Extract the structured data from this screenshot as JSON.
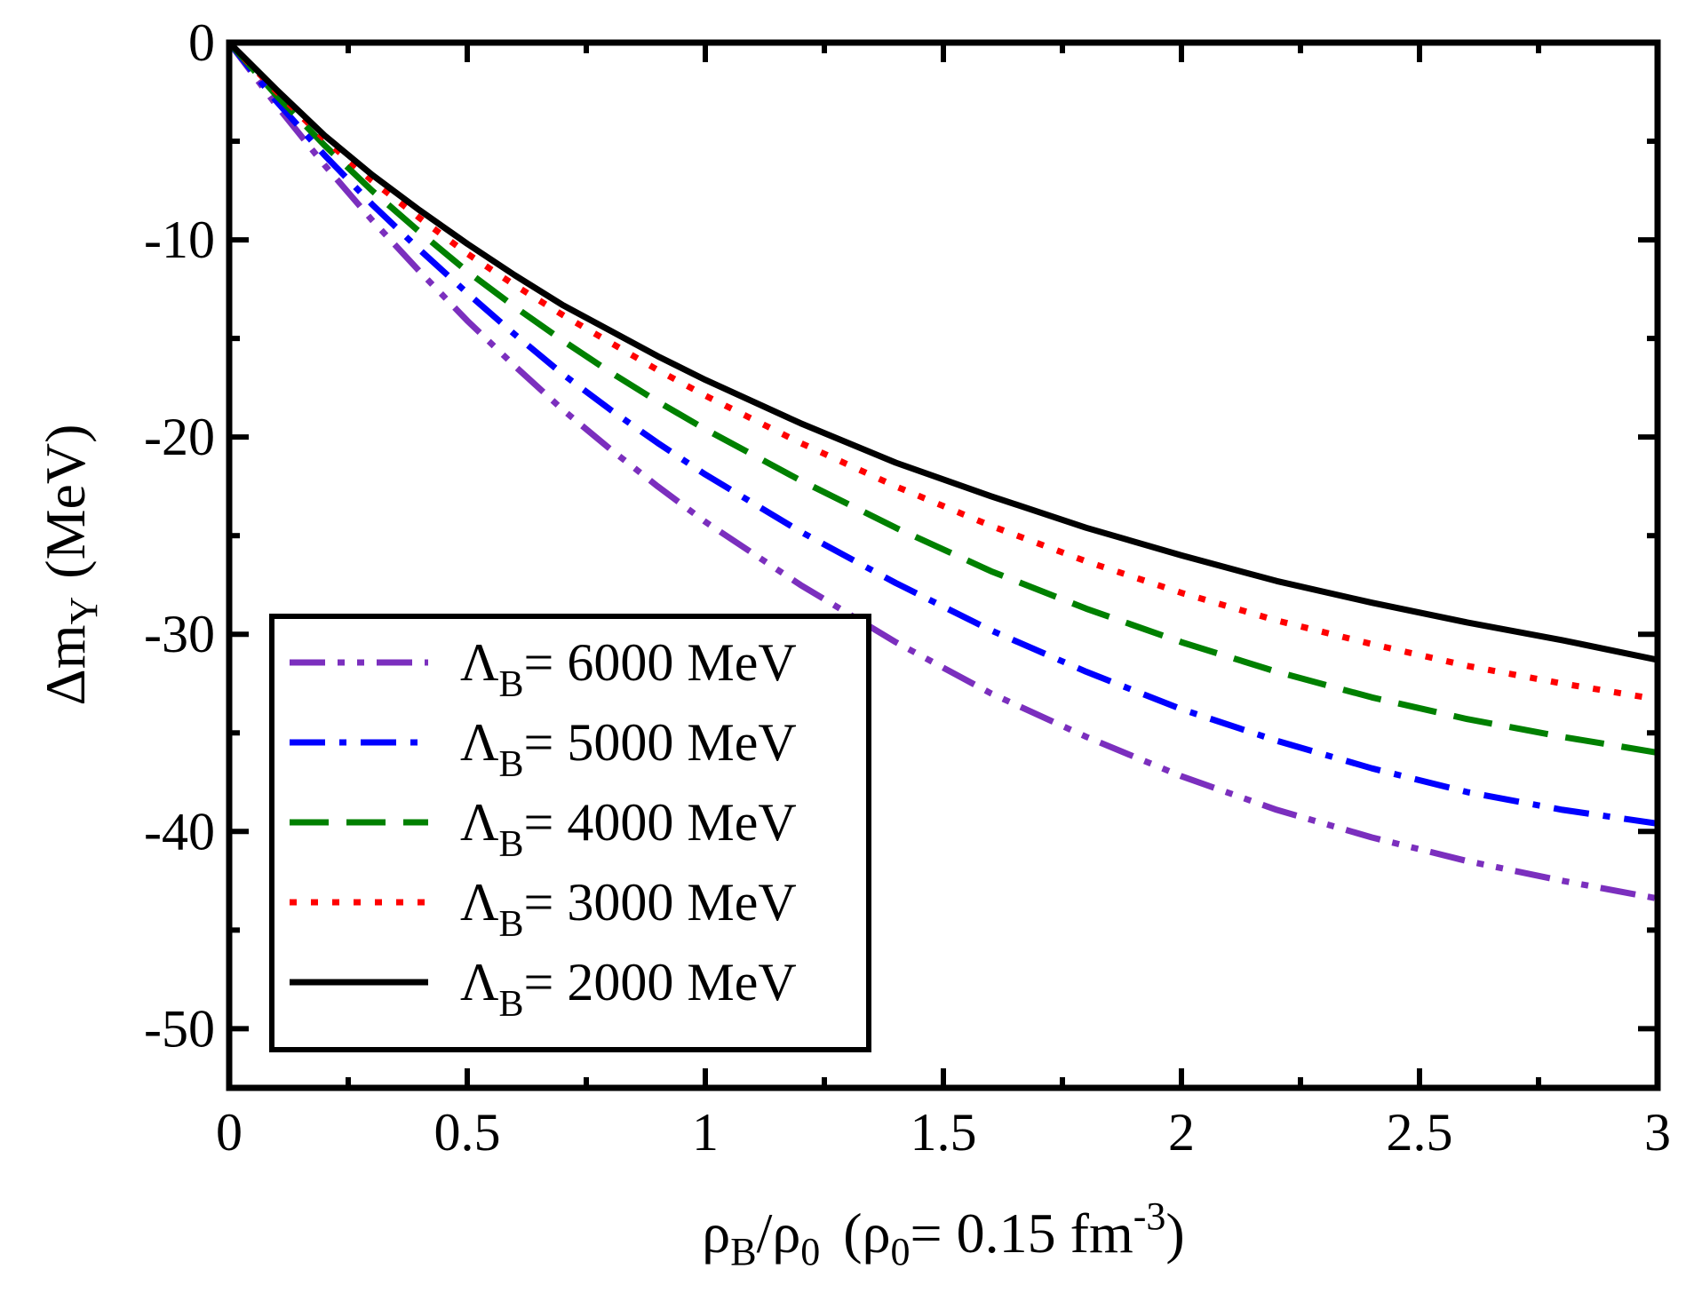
{
  "chart_data": {
    "type": "line",
    "title": "",
    "xlabel": {
      "rho_b": "ρ",
      "b_sub": "B",
      "slash": "/",
      "rho_0": "ρ",
      "zero_sub": "0",
      "open": "(",
      "rho_0b": "ρ",
      "zero_sub_b": "0",
      "equals_value": "= 0.15 fm",
      "exponent": "-3",
      "close": ")"
    },
    "ylabel": {
      "delta_m": "Δm",
      "sub": "Υ",
      "unit": "(MeV)"
    },
    "xlim": [
      0,
      3
    ],
    "ylim": [
      -53,
      0
    ],
    "xticks": [
      0,
      0.5,
      1,
      1.5,
      2,
      2.5,
      3
    ],
    "xtick_labels": [
      "0",
      "0.5",
      "1",
      "1.5",
      "2",
      "2.5",
      "3"
    ],
    "yticks": [
      0,
      -10,
      -20,
      -30,
      -40,
      -50
    ],
    "ytick_labels": [
      "0",
      "-10",
      "-20",
      "-30",
      "-40",
      "-50"
    ],
    "x_minor_ticks": [
      0.25,
      0.75,
      1.25,
      1.75,
      2.25,
      2.75
    ],
    "y_minor_ticks": [
      -5,
      -15,
      -25,
      -35,
      -45
    ],
    "legend_position": "lower-left",
    "x": [
      0,
      0.1,
      0.2,
      0.3,
      0.4,
      0.5,
      0.6,
      0.7,
      0.8,
      0.9,
      1.0,
      1.2,
      1.4,
      1.6,
      1.8,
      2.0,
      2.2,
      2.4,
      2.6,
      2.8,
      3.0
    ],
    "series": [
      {
        "name": "ΛB= 6000 MeV",
        "legend": {
          "lambda": "Λ",
          "sub": "B",
          "text": "= 6000 MeV"
        },
        "color": "#7b2fbe",
        "style": "dash-dot-dot",
        "values": [
          0,
          -3.2,
          -6.2,
          -9.0,
          -11.6,
          -14.1,
          -16.4,
          -18.6,
          -20.6,
          -22.5,
          -24.3,
          -27.5,
          -30.4,
          -33.0,
          -35.2,
          -37.2,
          -38.9,
          -40.3,
          -41.5,
          -42.5,
          -43.4
        ]
      },
      {
        "name": "ΛB= 5000 MeV",
        "legend": {
          "lambda": "Λ",
          "sub": "B",
          "text": "= 5000 MeV"
        },
        "color": "#0000ff",
        "style": "dash-dot",
        "values": [
          0,
          -3.0,
          -5.7,
          -8.2,
          -10.5,
          -12.7,
          -14.8,
          -16.8,
          -18.6,
          -20.3,
          -21.9,
          -24.8,
          -27.4,
          -29.8,
          -31.9,
          -33.8,
          -35.4,
          -36.8,
          -38.0,
          -38.9,
          -39.6
        ]
      },
      {
        "name": "ΛB= 4000 MeV",
        "legend": {
          "lambda": "Λ",
          "sub": "B",
          "text": "= 4000 MeV"
        },
        "color": "#008000",
        "style": "dashed",
        "values": [
          0,
          -2.7,
          -5.2,
          -7.5,
          -9.6,
          -11.6,
          -13.4,
          -15.1,
          -16.7,
          -18.2,
          -19.6,
          -22.2,
          -24.6,
          -26.8,
          -28.7,
          -30.4,
          -31.9,
          -33.2,
          -34.3,
          -35.2,
          -36.0
        ]
      },
      {
        "name": "ΛB= 3000 MeV",
        "legend": {
          "lambda": "Λ",
          "sub": "B",
          "text": "= 3000 MeV"
        },
        "color": "#ff0000",
        "style": "dotted",
        "values": [
          0,
          -2.5,
          -4.9,
          -7.0,
          -8.9,
          -10.7,
          -12.3,
          -13.8,
          -15.2,
          -16.6,
          -17.9,
          -20.3,
          -22.5,
          -24.5,
          -26.3,
          -27.9,
          -29.3,
          -30.5,
          -31.6,
          -32.5,
          -33.3
        ]
      },
      {
        "name": "ΛB= 2000 MeV",
        "legend": {
          "lambda": "Λ",
          "sub": "B",
          "text": "= 2000 MeV"
        },
        "color": "#000000",
        "style": "solid",
        "values": [
          0,
          -2.4,
          -4.7,
          -6.7,
          -8.5,
          -10.2,
          -11.8,
          -13.3,
          -14.6,
          -15.9,
          -17.1,
          -19.3,
          -21.3,
          -23.0,
          -24.6,
          -26.0,
          -27.3,
          -28.4,
          -29.4,
          -30.3,
          -31.3
        ]
      }
    ]
  }
}
